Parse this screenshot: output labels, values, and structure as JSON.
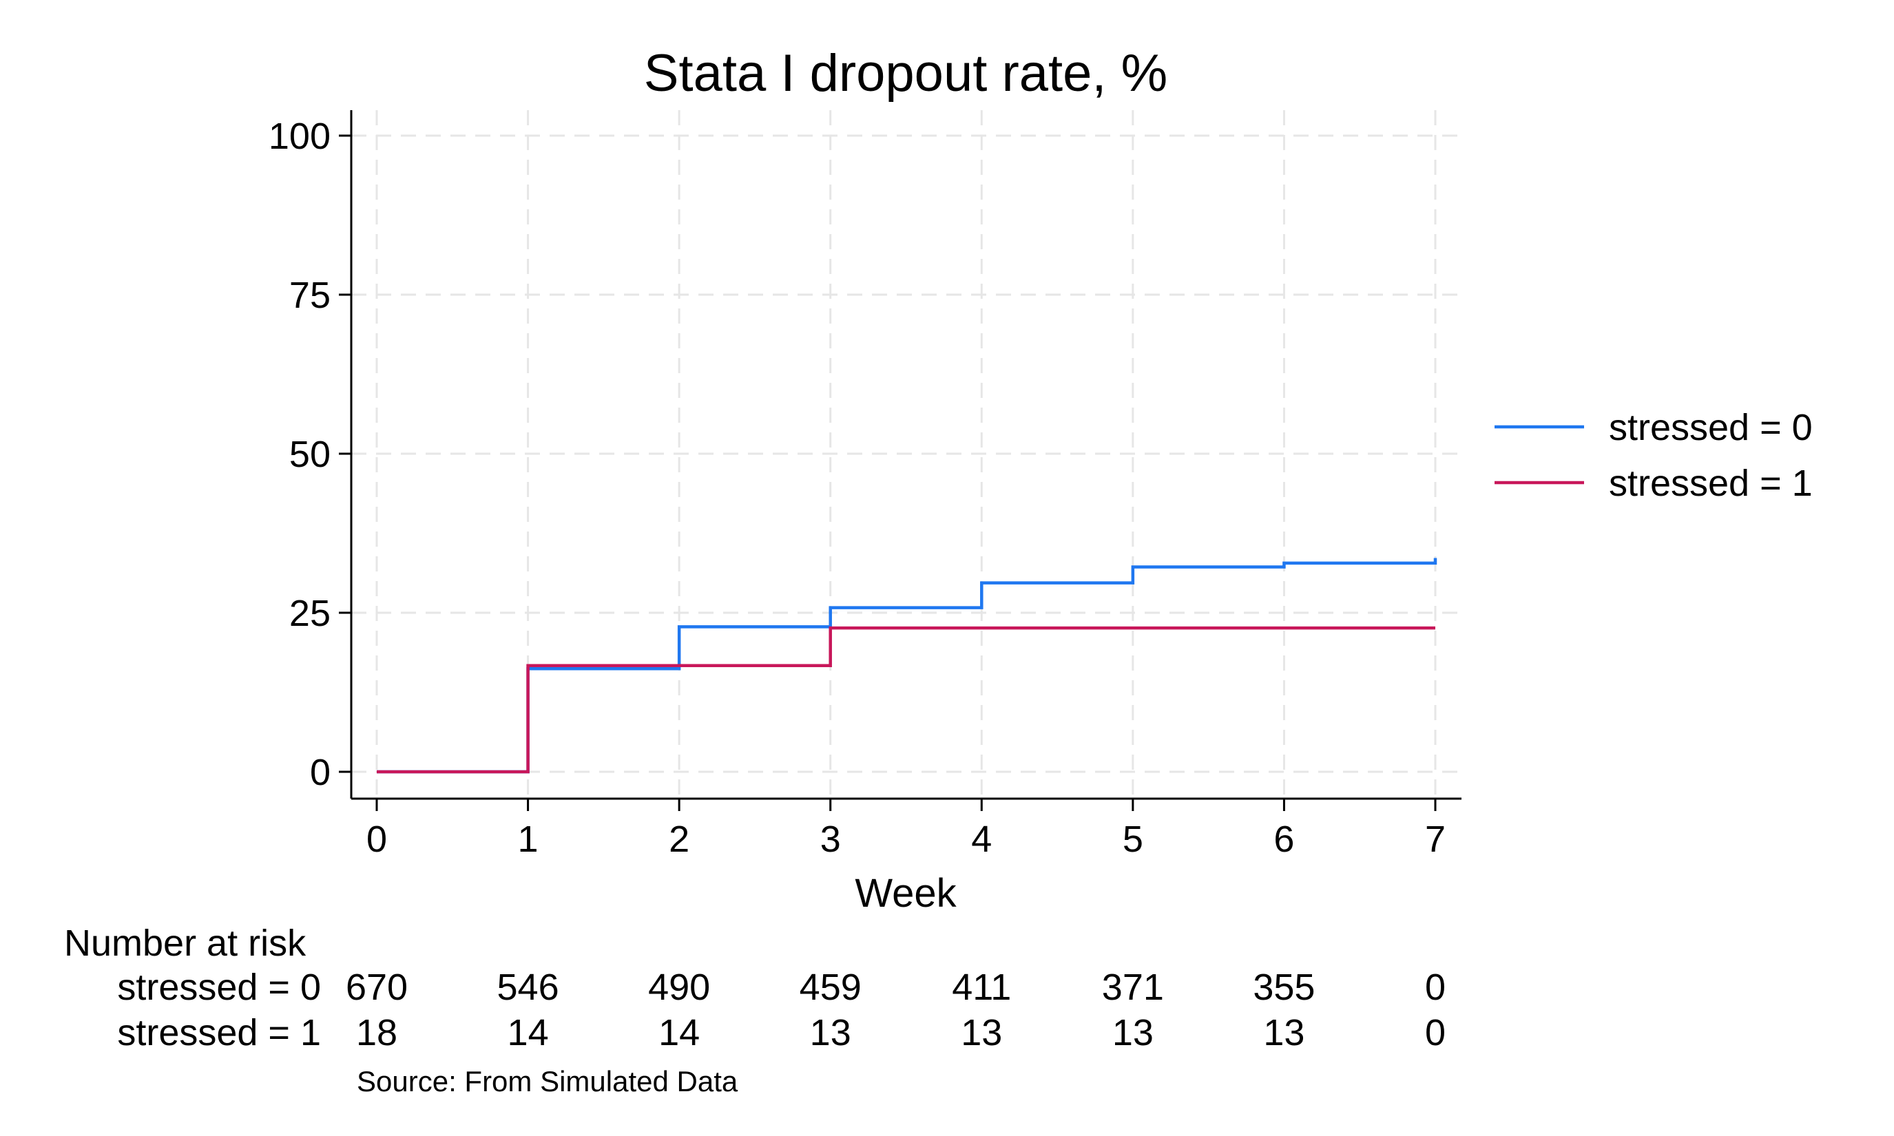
{
  "chart_data": {
    "type": "line",
    "subtype": "step",
    "title": "Stata I dropout rate, %",
    "xlabel": "Week",
    "ylabel": "",
    "xlim": [
      0,
      7
    ],
    "ylim": [
      0,
      100
    ],
    "x_ticks": [
      0,
      1,
      2,
      3,
      4,
      5,
      6,
      7
    ],
    "y_ticks": [
      0,
      25,
      50,
      75,
      100
    ],
    "grid": true,
    "legend_position": "right",
    "series": [
      {
        "name": "stressed = 0",
        "color": "#1f77f0",
        "x": [
          0,
          1,
          2,
          3,
          4,
          5,
          6,
          7
        ],
        "y": [
          0,
          16.2,
          22.8,
          25.8,
          29.7,
          32.2,
          32.8,
          33.6
        ]
      },
      {
        "name": "stressed = 1",
        "color": "#c8175a",
        "x": [
          0,
          1,
          3,
          7
        ],
        "y": [
          0,
          16.7,
          22.6,
          22.6
        ]
      }
    ],
    "risk_table": {
      "header": "Number at risk",
      "rows": [
        {
          "label": "stressed = 0",
          "values": [
            "670",
            "546",
            "490",
            "459",
            "411",
            "371",
            "355",
            "0"
          ]
        },
        {
          "label": "stressed = 1",
          "values": [
            "18",
            "14",
            "14",
            "13",
            "13",
            "13",
            "13",
            "0"
          ]
        }
      ]
    },
    "note": "Source: From Simulated Data"
  }
}
